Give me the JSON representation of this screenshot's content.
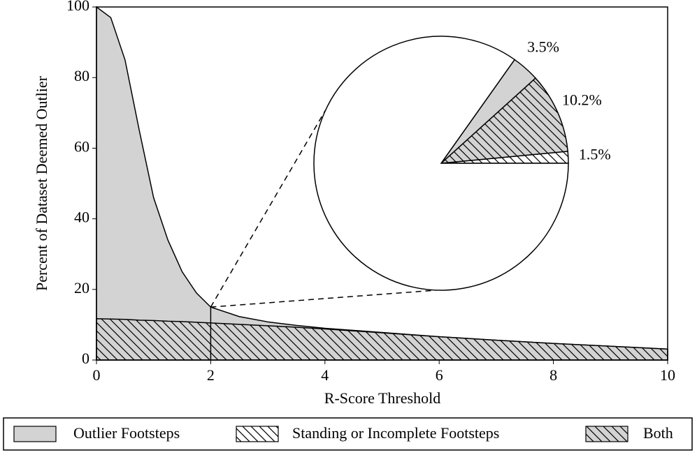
{
  "chart_data": [
    {
      "type": "area",
      "xlabel": "R-Score Threshold",
      "ylabel": "Percent of Dataset Deemed Outlier",
      "x": [
        0,
        0.25,
        0.5,
        0.75,
        1,
        1.25,
        1.5,
        1.75,
        2,
        2.5,
        3,
        3.5,
        4,
        5,
        6,
        7,
        8,
        9,
        10
      ],
      "series": [
        {
          "style": "gray",
          "values": [
            100,
            97,
            85,
            65,
            46,
            34,
            25,
            19,
            15,
            12.3,
            10.8,
            9.8,
            9,
            7.8,
            6.6,
            5.6,
            4.7,
            3.9,
            3.1
          ]
        },
        {
          "style": "gray-hatch",
          "values": [
            11.7,
            11.6,
            11.5,
            11.3,
            11.2,
            11.0,
            10.9,
            10.7,
            10.5,
            10.1,
            9.7,
            9.3,
            8.8,
            7.7,
            6.6,
            5.6,
            4.7,
            3.9,
            3.1
          ]
        }
      ],
      "xlim": [
        0,
        10
      ],
      "ylim": [
        0,
        100
      ],
      "xticks": [
        0,
        2,
        4,
        6,
        8,
        10
      ],
      "yticks": [
        0,
        20,
        40,
        60,
        80,
        100
      ],
      "inset_x": 2
    },
    {
      "type": "pie",
      "values": [
        1.5,
        10.2,
        3.5,
        84.8
      ],
      "value_labels": [
        "1.5%",
        "10.2%",
        "3.5%",
        null
      ],
      "styles": [
        "white-hatch",
        "gray-hatch",
        "gray",
        "white"
      ]
    }
  ],
  "legend": {
    "items": [
      {
        "name": "Outlier Footsteps",
        "style": "gray"
      },
      {
        "name": "Standing or Incomplete Footsteps",
        "style": "white-hatch"
      },
      {
        "name": "Both",
        "style": "gray-hatch"
      }
    ]
  }
}
